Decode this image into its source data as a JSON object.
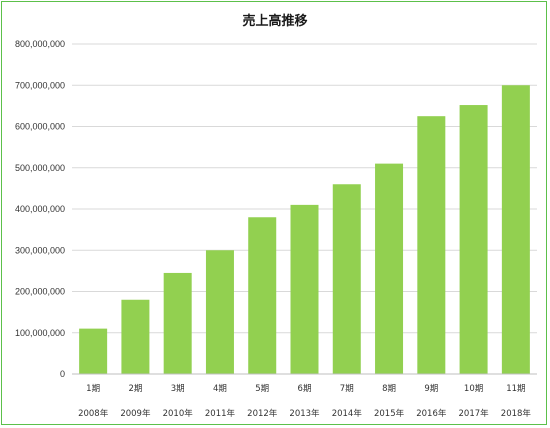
{
  "chart_data": {
    "type": "bar",
    "title": "売上高推移",
    "categories": [
      "1期",
      "2期",
      "3期",
      "4期",
      "5期",
      "6期",
      "7期",
      "8期",
      "9期",
      "10期",
      "11期"
    ],
    "sub_categories": [
      "2008年",
      "2009年",
      "2010年",
      "2011年",
      "2012年",
      "2013年",
      "2014年",
      "2015年",
      "2016年",
      "2017年",
      "2018年"
    ],
    "values": [
      110000000,
      180000000,
      245000000,
      300000000,
      380000000,
      410000000,
      460000000,
      510000000,
      625000000,
      652000000,
      700000000
    ],
    "ylim": [
      0,
      800000000
    ],
    "yticks": [
      "0",
      "100,000,000",
      "200,000,000",
      "300,000,000",
      "400,000,000",
      "500,000,000",
      "600,000,000",
      "700,000,000",
      "800,000,000"
    ],
    "grid": true,
    "bar_color": "#92d050",
    "border_color": "#5cc04a"
  }
}
